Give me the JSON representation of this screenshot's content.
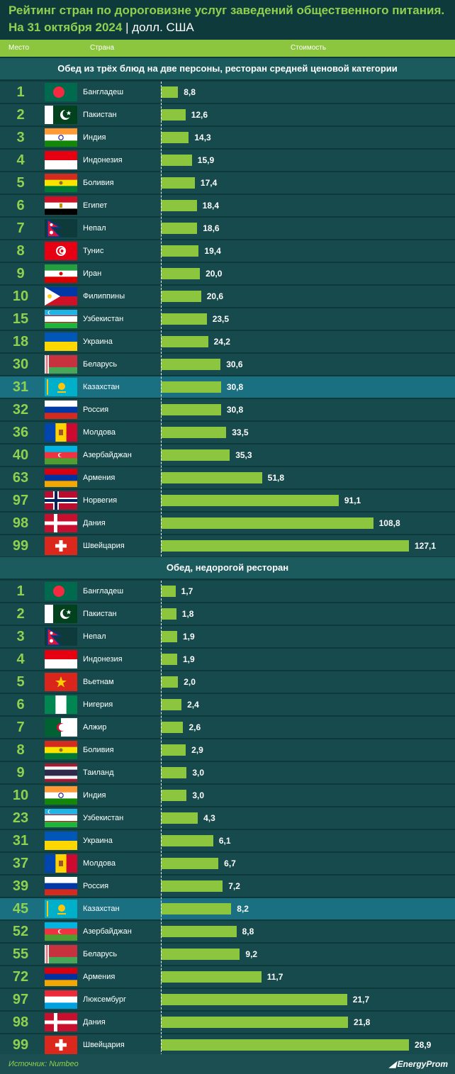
{
  "title_line1": "Рейтинг стран по дороговизне услуг заведений общественного питания.",
  "title_date": "На 31 октября 2024",
  "title_sep": "|",
  "title_unit": "долл. США",
  "header": {
    "rank": "Место",
    "country": "Страна",
    "cost": "Стоимость"
  },
  "footer": {
    "source": "Источник: Numbeo",
    "logo": "EnergyProm"
  },
  "colors": {
    "bar": "#8cc63f",
    "highlight": "#1a6f80",
    "row": "#164a4c",
    "accent": "#8fd14f"
  },
  "chart_data": [
    {
      "type": "bar",
      "title": "Обед из трёх блюд на две персоны, ресторан средней ценовой категории",
      "rows": [
        {
          "rank": "1",
          "country": "Бангладеш",
          "flag": "bangladesh-flag",
          "value": 8.8,
          "label": "8,8"
        },
        {
          "rank": "2",
          "country": "Пакистан",
          "flag": "pakistan-flag",
          "value": 12.6,
          "label": "12,6"
        },
        {
          "rank": "3",
          "country": "Индия",
          "flag": "india-flag",
          "value": 14.3,
          "label": "14,3"
        },
        {
          "rank": "4",
          "country": "Индонезия",
          "flag": "indonesia-flag",
          "value": 15.9,
          "label": "15,9"
        },
        {
          "rank": "5",
          "country": "Боливия",
          "flag": "bolivia-flag",
          "value": 17.4,
          "label": "17,4"
        },
        {
          "rank": "6",
          "country": "Египет",
          "flag": "egypt-flag",
          "value": 18.4,
          "label": "18,4"
        },
        {
          "rank": "7",
          "country": "Непал",
          "flag": "nepal-flag",
          "value": 18.6,
          "label": "18,6"
        },
        {
          "rank": "8",
          "country": "Тунис",
          "flag": "tunisia-flag",
          "value": 19.4,
          "label": "19,4"
        },
        {
          "rank": "9",
          "country": "Иран",
          "flag": "iran-flag",
          "value": 20.0,
          "label": "20,0"
        },
        {
          "rank": "10",
          "country": "Филиппины",
          "flag": "philippines-flag",
          "value": 20.6,
          "label": "20,6"
        },
        {
          "rank": "15",
          "country": "Узбекистан",
          "flag": "uzbekistan-flag",
          "value": 23.5,
          "label": "23,5"
        },
        {
          "rank": "18",
          "country": "Украина",
          "flag": "ukraine-flag",
          "value": 24.2,
          "label": "24,2"
        },
        {
          "rank": "30",
          "country": "Беларусь",
          "flag": "belarus-flag",
          "value": 30.6,
          "label": "30,6"
        },
        {
          "rank": "31",
          "country": "Казахстан",
          "flag": "kazakhstan-flag",
          "value": 30.8,
          "label": "30,8",
          "highlight": true
        },
        {
          "rank": "32",
          "country": "Россия",
          "flag": "russia-flag",
          "value": 30.8,
          "label": "30,8"
        },
        {
          "rank": "36",
          "country": "Молдова",
          "flag": "moldova-flag",
          "value": 33.5,
          "label": "33,5"
        },
        {
          "rank": "40",
          "country": "Азербайджан",
          "flag": "azerbaijan-flag",
          "value": 35.3,
          "label": "35,3"
        },
        {
          "rank": "63",
          "country": "Армения",
          "flag": "armenia-flag",
          "value": 51.8,
          "label": "51,8"
        },
        {
          "rank": "97",
          "country": "Норвегия",
          "flag": "norway-flag",
          "value": 91.1,
          "label": "91,1"
        },
        {
          "rank": "98",
          "country": "Дания",
          "flag": "denmark-flag",
          "value": 108.8,
          "label": "108,8"
        },
        {
          "rank": "99",
          "country": "Швейцария",
          "flag": "switzerland-flag",
          "value": 127.1,
          "label": "127,1"
        }
      ]
    },
    {
      "type": "bar",
      "title": "Обед, недорогой ресторан",
      "rows": [
        {
          "rank": "1",
          "country": "Бангладеш",
          "flag": "bangladesh-flag",
          "value": 1.7,
          "label": "1,7"
        },
        {
          "rank": "2",
          "country": "Пакистан",
          "flag": "pakistan-flag",
          "value": 1.8,
          "label": "1,8"
        },
        {
          "rank": "3",
          "country": "Непал",
          "flag": "nepal-flag",
          "value": 1.9,
          "label": "1,9"
        },
        {
          "rank": "4",
          "country": "Индонезия",
          "flag": "indonesia-flag",
          "value": 1.9,
          "label": "1,9"
        },
        {
          "rank": "5",
          "country": "Вьетнам",
          "flag": "vietnam-flag",
          "value": 2.0,
          "label": "2,0"
        },
        {
          "rank": "6",
          "country": "Нигерия",
          "flag": "nigeria-flag",
          "value": 2.4,
          "label": "2,4"
        },
        {
          "rank": "7",
          "country": "Алжир",
          "flag": "algeria-flag",
          "value": 2.6,
          "label": "2,6"
        },
        {
          "rank": "8",
          "country": "Боливия",
          "flag": "bolivia-flag",
          "value": 2.9,
          "label": "2,9"
        },
        {
          "rank": "9",
          "country": "Таиланд",
          "flag": "thailand-flag",
          "value": 3.0,
          "label": "3,0"
        },
        {
          "rank": "10",
          "country": "Индия",
          "flag": "india-flag",
          "value": 3.0,
          "label": "3,0"
        },
        {
          "rank": "23",
          "country": "Узбекистан",
          "flag": "uzbekistan-flag",
          "value": 4.3,
          "label": "4,3"
        },
        {
          "rank": "31",
          "country": "Украина",
          "flag": "ukraine-flag",
          "value": 6.1,
          "label": "6,1"
        },
        {
          "rank": "37",
          "country": "Молдова",
          "flag": "moldova-flag",
          "value": 6.7,
          "label": "6,7"
        },
        {
          "rank": "39",
          "country": "Россия",
          "flag": "russia-flag",
          "value": 7.2,
          "label": "7,2"
        },
        {
          "rank": "45",
          "country": "Казахстан",
          "flag": "kazakhstan-flag",
          "value": 8.2,
          "label": "8,2",
          "highlight": true
        },
        {
          "rank": "52",
          "country": "Азербайджан",
          "flag": "azerbaijan-flag",
          "value": 8.8,
          "label": "8,8"
        },
        {
          "rank": "55",
          "country": "Беларусь",
          "flag": "belarus-flag",
          "value": 9.2,
          "label": "9,2"
        },
        {
          "rank": "72",
          "country": "Армения",
          "flag": "armenia-flag",
          "value": 11.7,
          "label": "11,7"
        },
        {
          "rank": "97",
          "country": "Люксембург",
          "flag": "luxembourg-flag",
          "value": 21.7,
          "label": "21,7"
        },
        {
          "rank": "98",
          "country": "Дания",
          "flag": "denmark-flag",
          "value": 21.8,
          "label": "21,8"
        },
        {
          "rank": "99",
          "country": "Швейцария",
          "flag": "switzerland-flag",
          "value": 28.9,
          "label": "28,9"
        }
      ]
    }
  ]
}
